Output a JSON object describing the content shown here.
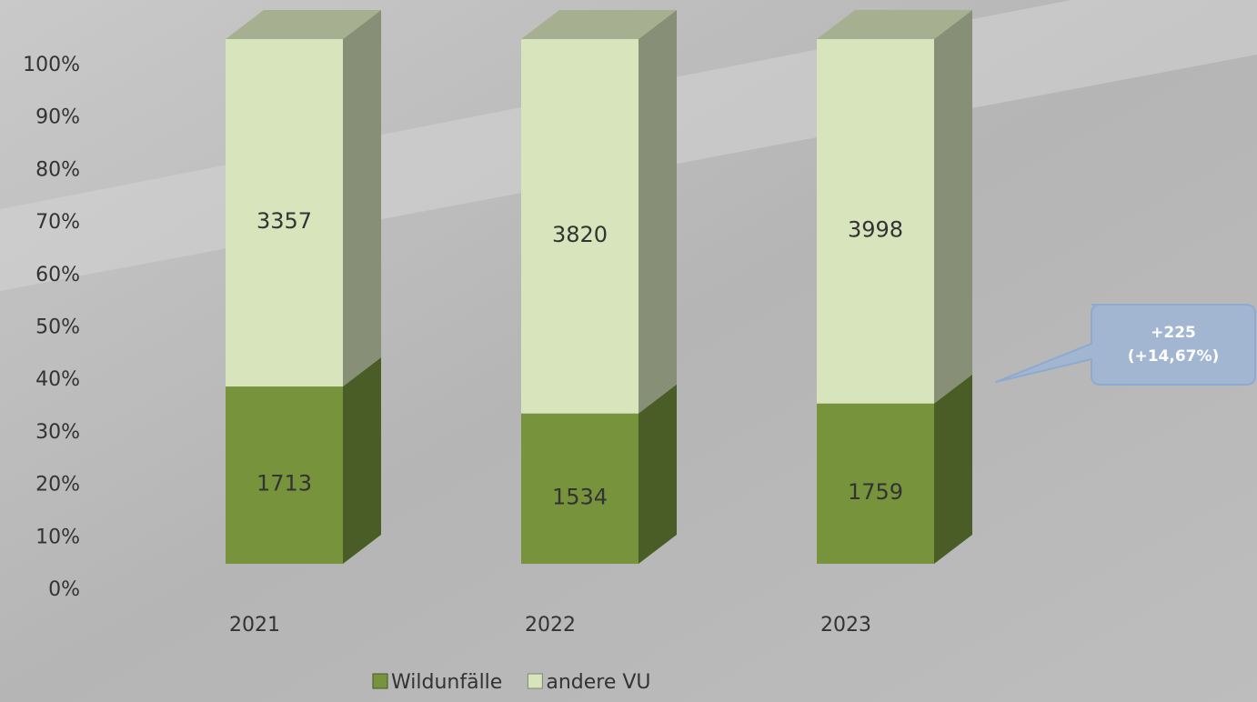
{
  "chart_data": {
    "type": "bar",
    "stack": "percent",
    "categories": [
      "2021",
      "2022",
      "2023"
    ],
    "series": [
      {
        "name": "Wildunfälle",
        "color": "#77933c",
        "values": [
          1713,
          1534,
          1759
        ]
      },
      {
        "name": "andere VU",
        "color": "#d7e4bc",
        "values": [
          3357,
          3820,
          3998
        ]
      }
    ],
    "ylim": [
      0,
      100
    ],
    "yticks": [
      {
        "value": 0,
        "label": "0%"
      },
      {
        "value": 10,
        "label": "10%"
      },
      {
        "value": 20,
        "label": "20%"
      },
      {
        "value": 30,
        "label": "30%"
      },
      {
        "value": 40,
        "label": "40%"
      },
      {
        "value": 50,
        "label": "50%"
      },
      {
        "value": 60,
        "label": "60%"
      },
      {
        "value": 70,
        "label": "70%"
      },
      {
        "value": 80,
        "label": "80%"
      },
      {
        "value": 90,
        "label": "90%"
      },
      {
        "value": 100,
        "label": "100%"
      }
    ],
    "grid": false,
    "legend": "bottom",
    "annotation": [
      "+225",
      "(+14,67%)"
    ]
  }
}
